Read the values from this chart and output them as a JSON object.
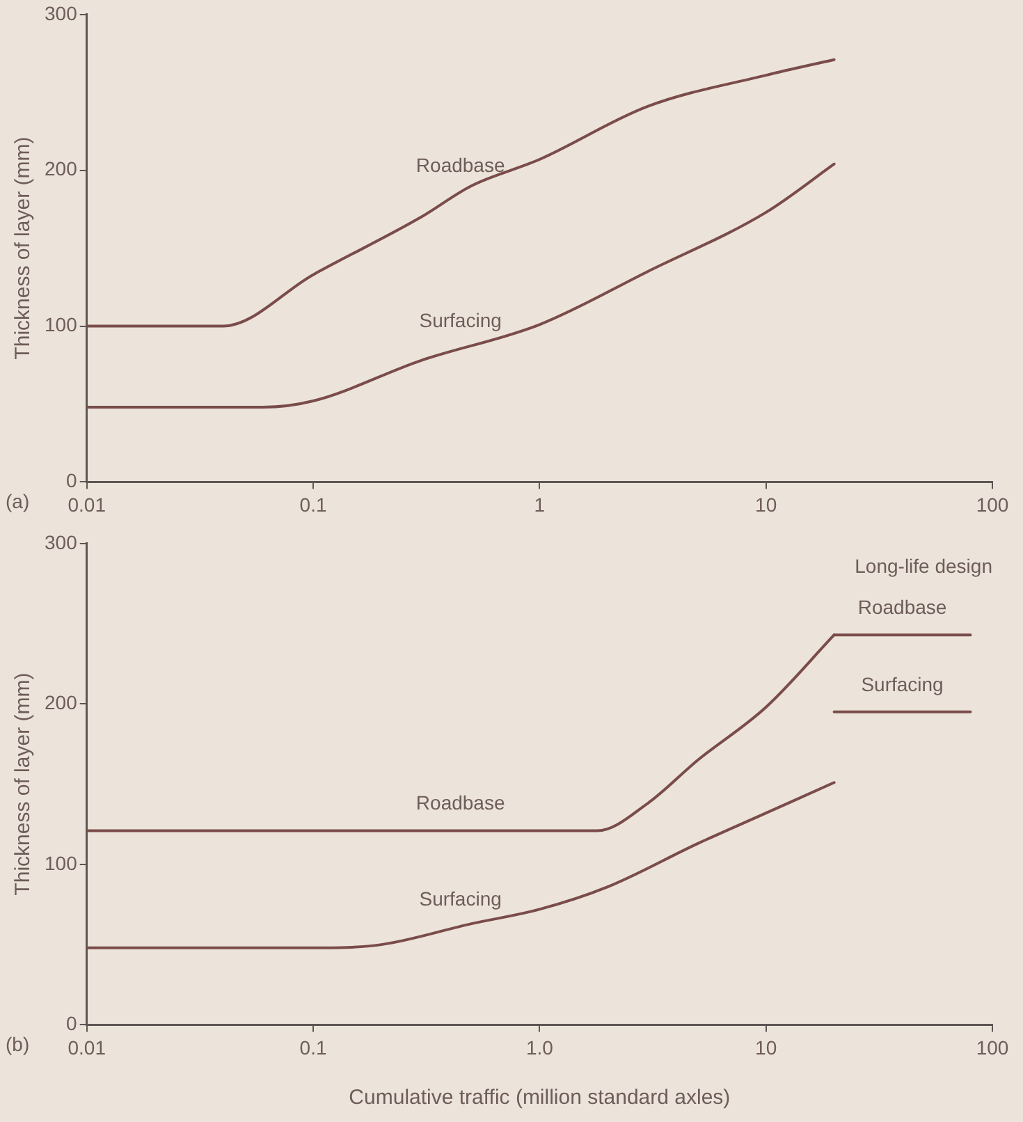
{
  "chart_data": [
    {
      "type": "line",
      "ylabel": "Thickness of layer (mm)",
      "log": "x",
      "xlim": [
        0.01,
        100
      ],
      "xticks": [
        0.01,
        0.1,
        1,
        10,
        100
      ],
      "ylim": [
        0,
        300
      ],
      "yticks": [
        0,
        100,
        200,
        300
      ],
      "grid": false,
      "legend": false,
      "marker": "none",
      "line_style": "solid",
      "annotations": [
        "(a)"
      ],
      "series": [
        {
          "name": "Roadbase",
          "color": "#7a4c4a",
          "x": [
            0.01,
            0.04,
            0.1,
            0.3,
            0.5,
            1,
            3,
            10,
            20
          ],
          "values": [
            100,
            100,
            133,
            170,
            190,
            207,
            241,
            261,
            271
          ]
        },
        {
          "name": "Surfacing",
          "color": "#7a4c4a",
          "x": [
            0.01,
            0.06,
            0.1,
            0.3,
            1,
            3,
            10,
            20
          ],
          "values": [
            48,
            48,
            52,
            78,
            101,
            135,
            173,
            204
          ]
        }
      ]
    },
    {
      "type": "line",
      "xlabel": "Cumulative traffic (million standard axles)",
      "ylabel": "Thickness of layer (mm)",
      "log": "x",
      "xlim": [
        0.01,
        100
      ],
      "xticks": [
        0.01,
        0.1,
        {
          "value": 1,
          "label": "1.0"
        },
        10,
        100
      ],
      "ylim": [
        0,
        300
      ],
      "yticks": [
        0,
        100,
        200,
        300
      ],
      "grid": false,
      "legend": false,
      "marker": "none",
      "line_style": "solid",
      "annotations": [
        "(b)",
        "Long-life design"
      ],
      "series": [
        {
          "name": "Roadbase",
          "color": "#7a4c4a",
          "x": [
            0.01,
            1.8,
            3,
            5,
            10,
            20
          ],
          "values": [
            121,
            121,
            138,
            165,
            198,
            243
          ]
        },
        {
          "name": "Surfacing",
          "color": "#7a4c4a",
          "x": [
            0.01,
            0.1,
            0.2,
            0.5,
            1,
            2,
            5,
            10,
            20
          ],
          "values": [
            48,
            48,
            50,
            63,
            72,
            86,
            113,
            132,
            151
          ]
        },
        {
          "name": "Roadbase",
          "color": "#7a4c4a",
          "x": [
            20,
            80
          ],
          "values": [
            243,
            243
          ]
        },
        {
          "name": "Surfacing",
          "color": "#7a4c4a",
          "x": [
            20,
            80
          ],
          "values": [
            195,
            195
          ]
        }
      ]
    }
  ]
}
